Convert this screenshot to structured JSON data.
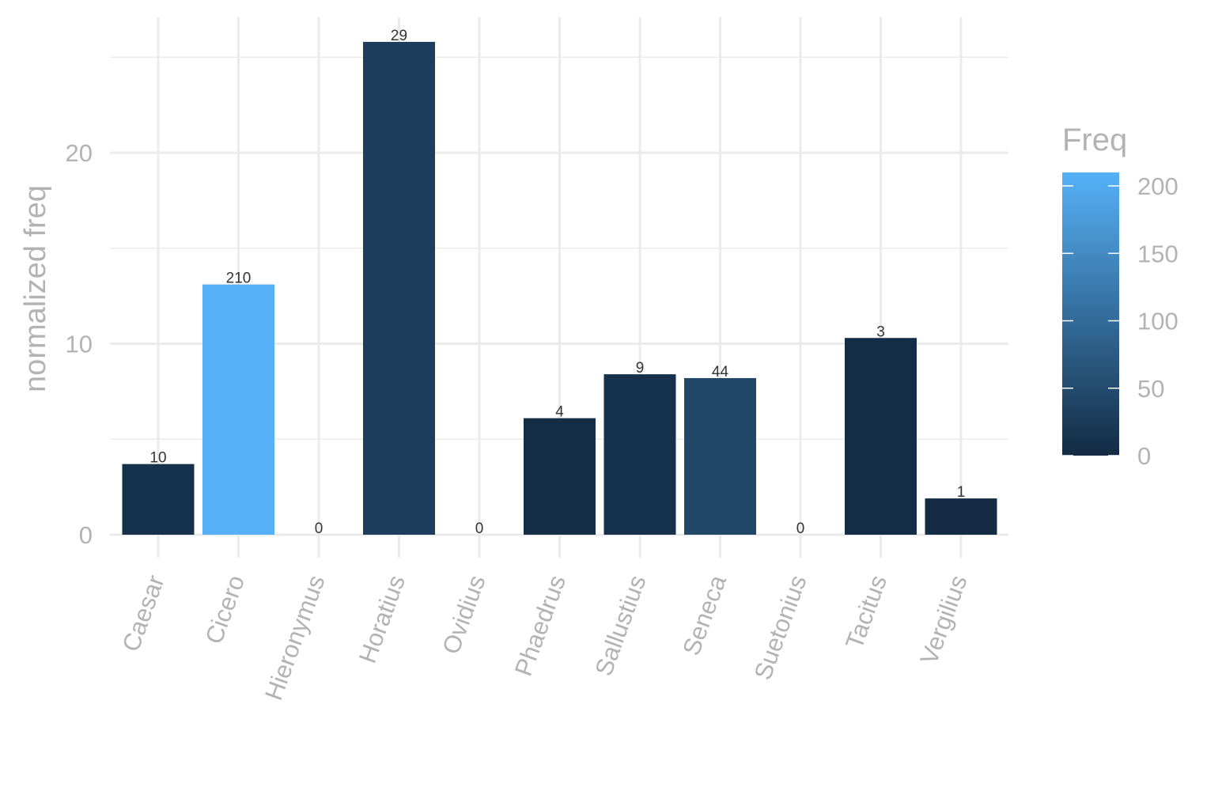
{
  "chart_data": {
    "type": "bar",
    "categories": [
      "Caesar",
      "Cicero",
      "Hieronymus",
      "Horatius",
      "Ovidius",
      "Phaedrus",
      "Sallustius",
      "Seneca",
      "Suetonius",
      "Tacitus",
      "Vergilius"
    ],
    "values": [
      3.7,
      13.1,
      0,
      25.8,
      0,
      6.1,
      8.4,
      8.2,
      0,
      10.3,
      1.9
    ],
    "freq": [
      10,
      210,
      0,
      29,
      0,
      4,
      9,
      44,
      0,
      3,
      1
    ],
    "bar_labels": [
      "10",
      "210",
      "0",
      "29",
      "0",
      "4",
      "9",
      "44",
      "0",
      "3",
      "1"
    ],
    "xlabel": "",
    "ylabel": "normalized freq",
    "ylim": [
      0,
      27
    ],
    "y_ticks": [
      0,
      10,
      20
    ],
    "grid": true,
    "legend": {
      "title": "Freq",
      "placement": "right",
      "min": 0,
      "max": 210,
      "ticks": [
        0,
        50,
        100,
        150,
        200
      ],
      "color_low": "#132B43",
      "color_high": "#56B1F7"
    }
  }
}
